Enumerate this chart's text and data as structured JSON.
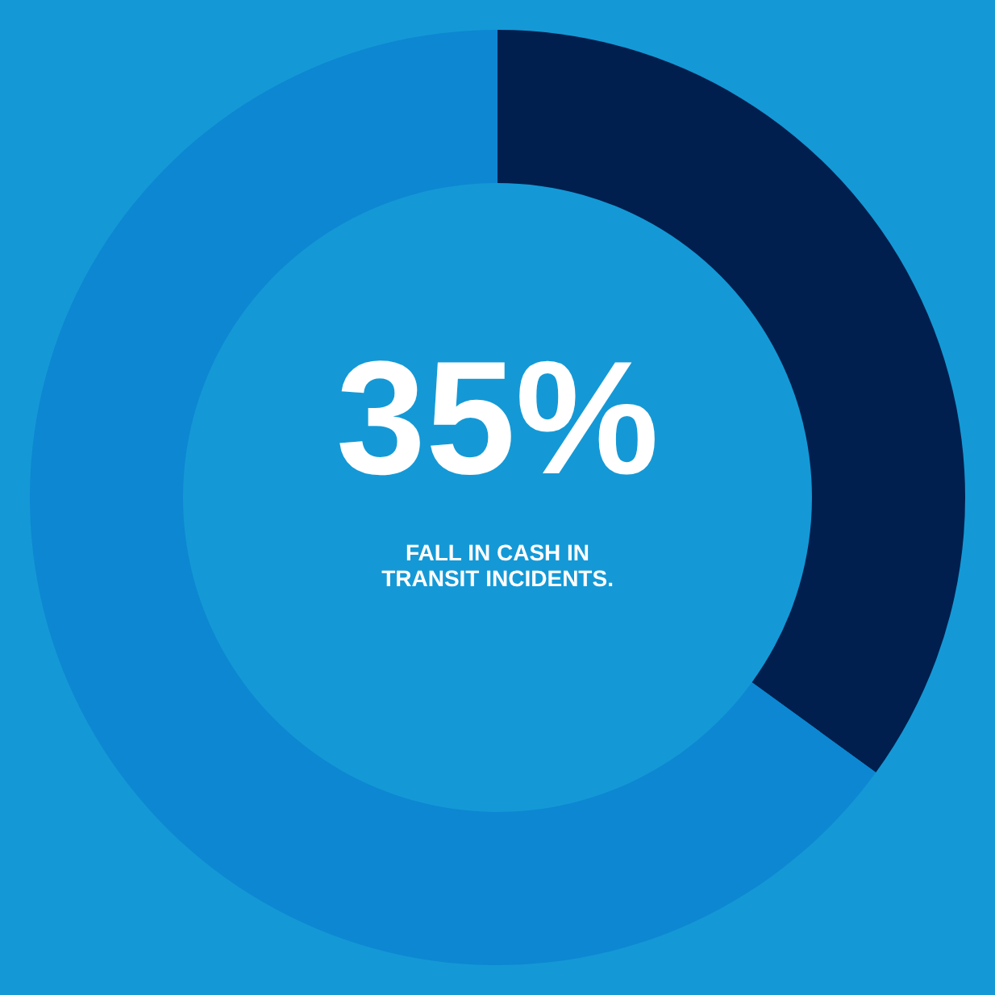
{
  "chart_data": {
    "type": "donut",
    "categories": [
      null,
      null
    ],
    "values": [
      35,
      65
    ],
    "colors": [
      "#001f4e",
      "#0d87d2"
    ],
    "value_labels": [
      "35%",
      null
    ],
    "annotations": [
      "FALL IN CASH IN TRANSIT INCIDENTS."
    ],
    "legend": false
  }
}
